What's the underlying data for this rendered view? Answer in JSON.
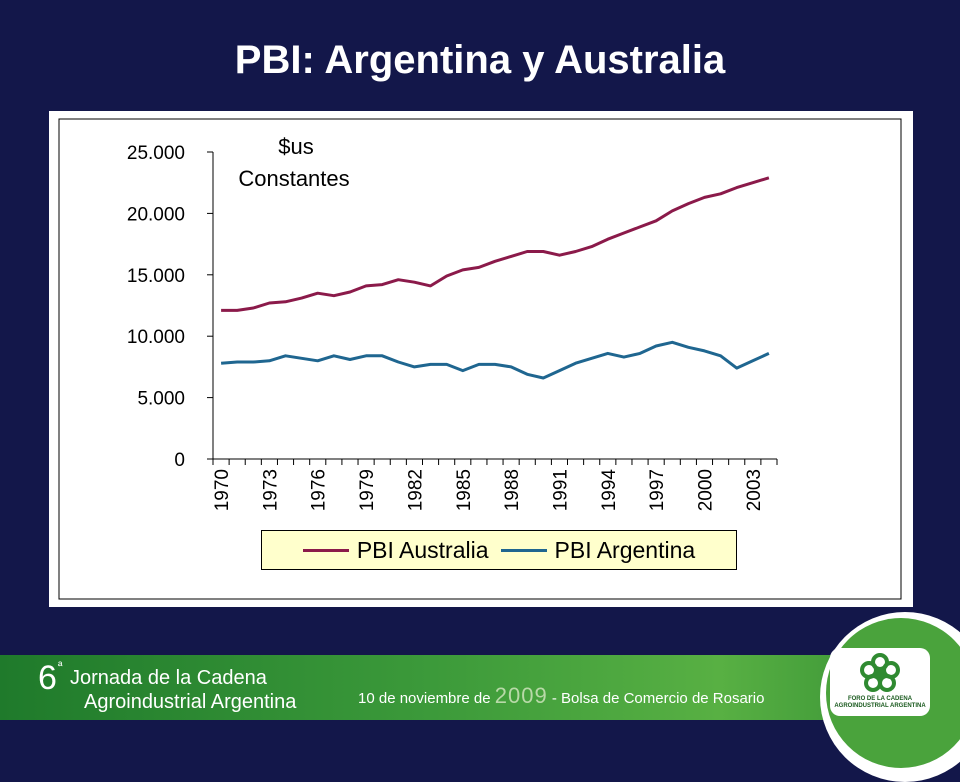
{
  "slide": {
    "title": "PBI: Argentina y Australia"
  },
  "chart_data": {
    "type": "line",
    "annotation": "$us\nConstantes",
    "x": [
      1970,
      1971,
      1972,
      1973,
      1974,
      1975,
      1976,
      1977,
      1978,
      1979,
      1980,
      1981,
      1982,
      1983,
      1984,
      1985,
      1986,
      1987,
      1988,
      1989,
      1990,
      1991,
      1992,
      1993,
      1994,
      1995,
      1996,
      1997,
      1998,
      1999,
      2000,
      2001,
      2002,
      2003,
      2004
    ],
    "x_tick_labels": [
      "1970",
      "1973",
      "1976",
      "1979",
      "1982",
      "1985",
      "1988",
      "1991",
      "1994",
      "1997",
      "2000",
      "2003"
    ],
    "y_tick_labels": [
      "0",
      "5.000",
      "10.000",
      "15.000",
      "20.000",
      "25.000"
    ],
    "ylim": [
      0,
      25000
    ],
    "grid": false,
    "legend_position": "bottom",
    "series": [
      {
        "name": "PBI Australia",
        "color": "#8b1a4a",
        "values": [
          12100,
          12100,
          12300,
          12700,
          12800,
          13100,
          13500,
          13300,
          13600,
          14100,
          14200,
          14600,
          14400,
          14100,
          14900,
          15400,
          15600,
          16100,
          16500,
          16900,
          16900,
          16600,
          16900,
          17300,
          17900,
          18400,
          18900,
          19400,
          20200,
          20800,
          21300,
          21600,
          22100,
          22500,
          22900
        ]
      },
      {
        "name": "PBI Argentina",
        "color": "#1f6690",
        "values": [
          7800,
          7900,
          7900,
          8000,
          8400,
          8200,
          8000,
          8400,
          8100,
          8400,
          8400,
          7900,
          7500,
          7700,
          7700,
          7200,
          7700,
          7700,
          7500,
          6900,
          6600,
          7200,
          7800,
          8200,
          8600,
          8300,
          8600,
          9200,
          9500,
          9100,
          8800,
          8400,
          7400,
          8000,
          8600
        ]
      }
    ]
  },
  "footer": {
    "edition": "6",
    "edition_sup": "ª",
    "line1": "Jornada de la Cadena",
    "line2": "Agroindustrial Argentina",
    "date_prefix": "10 de noviembre de ",
    "year": "2009",
    "date_suffix": " - Bolsa de Comercio de Rosario",
    "logo_text": "FORO DE LA CADENA AGROINDUSTRIAL ARGENTINA"
  }
}
